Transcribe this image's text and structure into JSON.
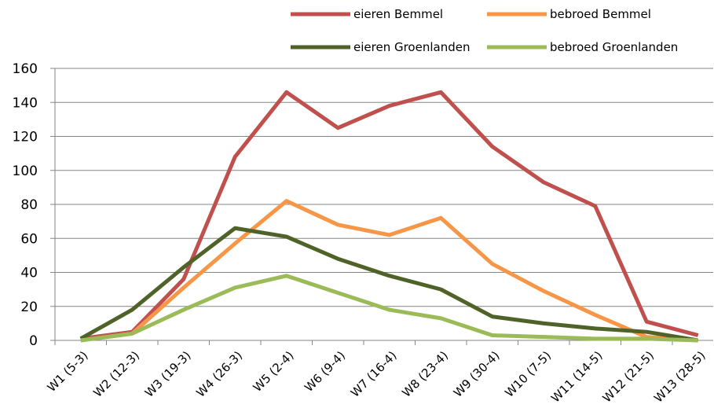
{
  "chart_data": {
    "type": "line",
    "categories": [
      "W1 (5-3)",
      "W2 (12-3)",
      "W3 (19-3)",
      "W4 (26-3)",
      "W5 (2-4)",
      "W6 (9-4)",
      "W7 (16-4)",
      "W8 (23-4)",
      "W9 (30-4)",
      "W10 (7-5)",
      "W11 (14-5)",
      "W12 (21-5)",
      "W13 (28-5)"
    ],
    "series": [
      {
        "name": "eieren Bemmel",
        "color": "#c0504d",
        "values": [
          1,
          5,
          36,
          108,
          146,
          125,
          138,
          146,
          114,
          93,
          79,
          11,
          3
        ]
      },
      {
        "name": "bebroed Bemmel",
        "color": "#f79646",
        "values": [
          0,
          4,
          31,
          57,
          82,
          68,
          62,
          72,
          45,
          29,
          15,
          2,
          0
        ]
      },
      {
        "name": "eieren Groenlanden",
        "color": "#4f6228",
        "values": [
          1,
          18,
          43,
          66,
          61,
          48,
          38,
          30,
          14,
          10,
          7,
          5,
          0
        ]
      },
      {
        "name": "bebroed Groenlanden",
        "color": "#9bbb59",
        "values": [
          0,
          4,
          18,
          31,
          38,
          28,
          18,
          13,
          3,
          2,
          1,
          1,
          0
        ]
      }
    ],
    "ylim": [
      0,
      160
    ],
    "yticks": [
      0,
      20,
      40,
      60,
      80,
      100,
      120,
      140,
      160
    ],
    "grid": true,
    "legend": "top"
  }
}
